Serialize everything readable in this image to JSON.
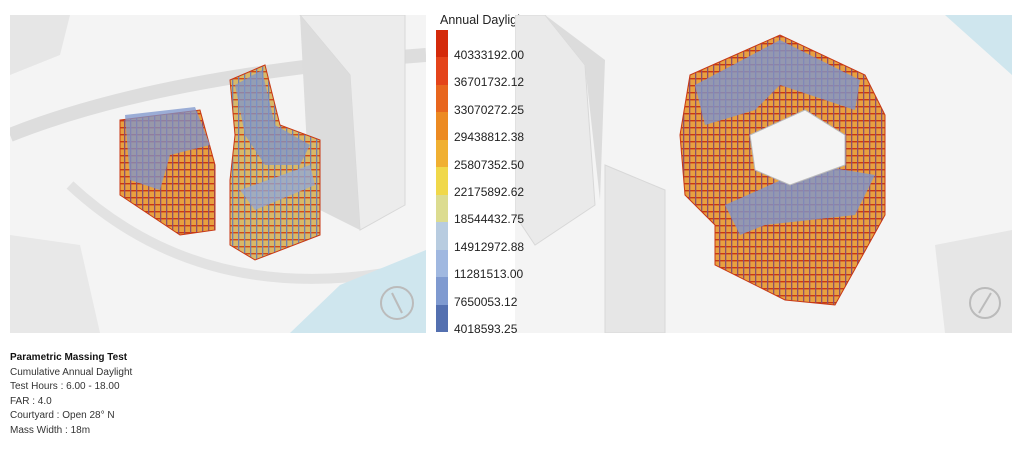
{
  "legend": {
    "title": "Annual Daylight",
    "labels": [
      "40333192.00",
      "36701732.12",
      "33070272.25",
      "29438812.38",
      "25807352.50",
      "22175892.62",
      "18544432.75",
      "14912972.88",
      "11281513.00",
      "7650053.12",
      "4018593.25"
    ]
  },
  "caption": {
    "title": "Parametric Massing Test",
    "lines": [
      "Cumulative Annual Daylight",
      "Test Hours : 6.00 - 18.00",
      "FAR : 4.0",
      "Courtyard : Open 28° N",
      "Mass Width : 18m"
    ]
  }
}
